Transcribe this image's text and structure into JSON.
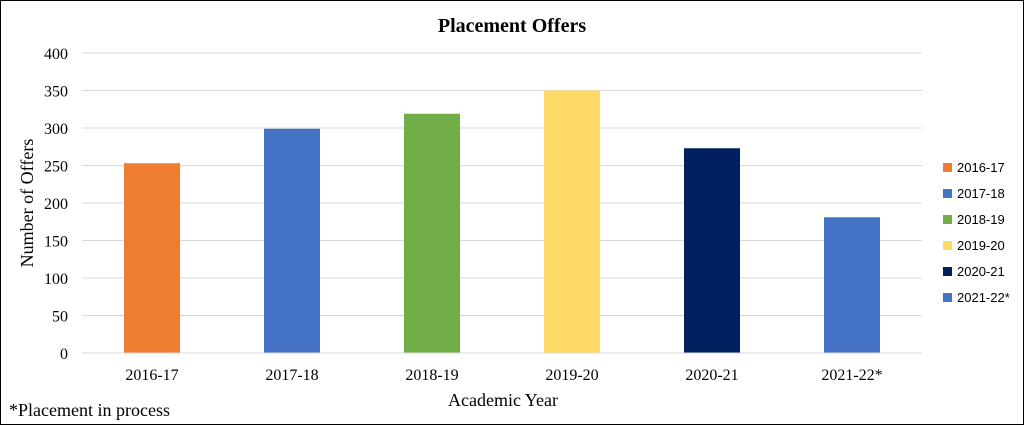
{
  "chart_data": {
    "type": "bar",
    "title": "Placement Offers",
    "xlabel": "Academic Year",
    "ylabel": "Number of Offers",
    "ylim": [
      0,
      400
    ],
    "yticks": [
      0,
      50,
      100,
      150,
      200,
      250,
      300,
      350,
      400
    ],
    "grid": true,
    "legend_position": "right",
    "categories": [
      "2016-17",
      "2017-18",
      "2018-19",
      "2019-20",
      "2020-21",
      "2021-22*"
    ],
    "values": [
      253,
      299,
      319,
      350,
      273,
      181
    ],
    "colors": [
      "#ED7D31",
      "#4472C4",
      "#70AD47",
      "#FFD966",
      "#002060",
      "#4472C4"
    ],
    "legend": [
      {
        "label": "2016-17",
        "color": "#ED7D31"
      },
      {
        "label": "2017-18",
        "color": "#4472C4"
      },
      {
        "label": "2018-19",
        "color": "#70AD47"
      },
      {
        "label": "2019-20",
        "color": "#FFD966"
      },
      {
        "label": "2020-21",
        "color": "#002060"
      },
      {
        "label": "2021-22*",
        "color": "#4472C4"
      }
    ],
    "footnote": "*Placement in process"
  }
}
